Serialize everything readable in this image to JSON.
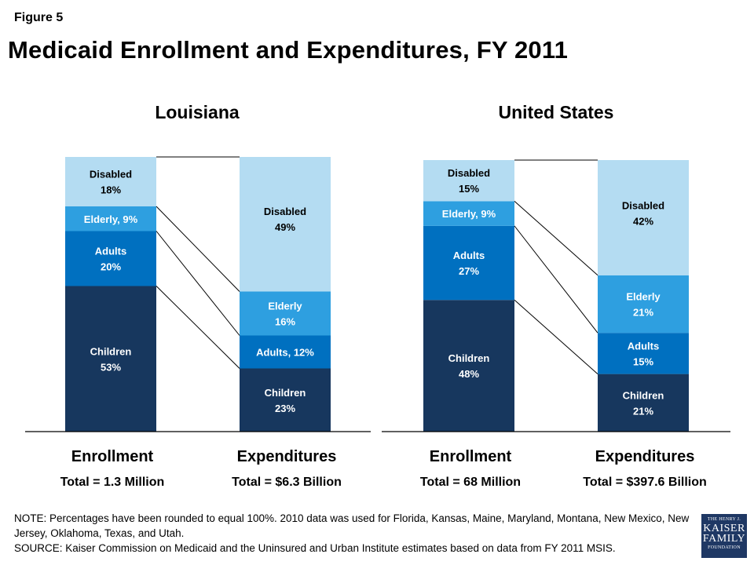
{
  "figure_label": "Figure 5",
  "title": "Medicaid Enrollment and Expenditures, FY 2011",
  "colors": {
    "Children": "#17375e",
    "Adults": "#0070c0",
    "Elderly": "#2e9fe0",
    "Disabled": "#b4dcf2",
    "label_light": "#ffffff",
    "label_dark": "#000000"
  },
  "chart_data": [
    {
      "type": "bar",
      "stacked": true,
      "title": "Louisiana",
      "categories": [
        "Enrollment",
        "Expenditures"
      ],
      "totals": [
        "Total = 1.3 Million",
        "Total = $6.3 Billion"
      ],
      "series": [
        {
          "name": "Children",
          "values": [
            53,
            23
          ],
          "labels": [
            "Children\n53%",
            "Children\n23%"
          ]
        },
        {
          "name": "Adults",
          "values": [
            20,
            12
          ],
          "labels": [
            "Adults\n20%",
            "Adults, 12%"
          ]
        },
        {
          "name": "Elderly",
          "values": [
            9,
            16
          ],
          "labels": [
            "Elderly, 9%",
            "Elderly\n16%"
          ]
        },
        {
          "name": "Disabled",
          "values": [
            18,
            49
          ],
          "labels": [
            "Disabled\n18%",
            "Disabled\n49%"
          ]
        }
      ],
      "ylim": [
        0,
        100
      ]
    },
    {
      "type": "bar",
      "stacked": true,
      "title": "United States",
      "categories": [
        "Enrollment",
        "Expenditures"
      ],
      "totals": [
        "Total = 68 Million",
        "Total = $397.6 Billion"
      ],
      "series": [
        {
          "name": "Children",
          "values": [
            48,
            21
          ],
          "labels": [
            "Children\n48%",
            "Children\n21%"
          ]
        },
        {
          "name": "Adults",
          "values": [
            27,
            15
          ],
          "labels": [
            "Adults\n27%",
            "Adults\n15%"
          ]
        },
        {
          "name": "Elderly",
          "values": [
            9,
            21
          ],
          "labels": [
            "Elderly, 9%",
            "Elderly\n21%"
          ]
        },
        {
          "name": "Disabled",
          "values": [
            15,
            42
          ],
          "labels": [
            "Disabled\n15%",
            "Disabled\n42%"
          ]
        }
      ],
      "ylim": [
        0,
        100
      ]
    }
  ],
  "note": {
    "line1": "NOTE: Percentages have been rounded to equal 100%. 2010 data was used for Florida, Kansas, Maine, Maryland, Montana, New Mexico, New Jersey, Oklahoma, Texas, and Utah.",
    "line2": "SOURCE: Kaiser Commission on Medicaid and the Uninsured and Urban Institute estimates based on data from FY 2011 MSIS."
  },
  "logo": {
    "line1": "THE HENRY J.",
    "line2": "KAISER",
    "line3": "FAMILY",
    "line4": "FOUNDATION"
  }
}
